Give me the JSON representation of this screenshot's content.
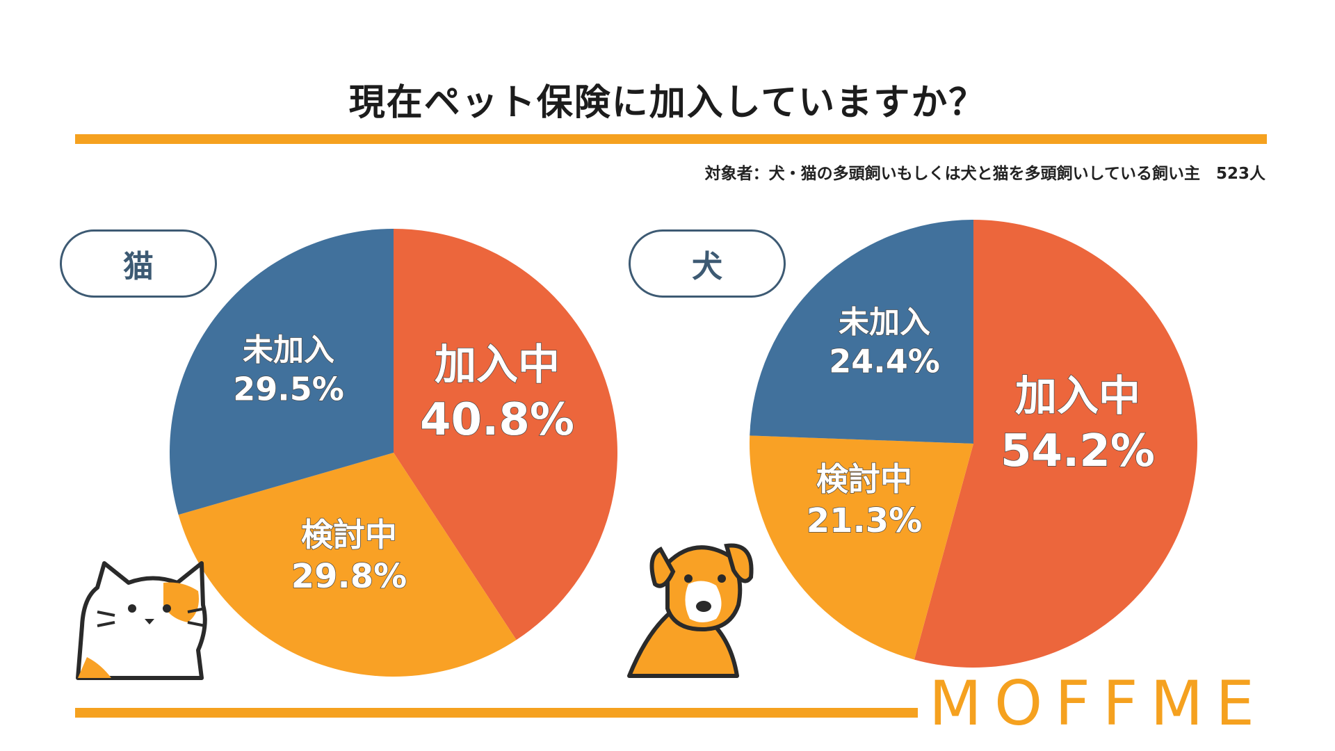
{
  "title": "現在ペット保険に加入していますか？",
  "subtitle": "対象者：犬・猫の多頭飼いもしくは犬と猫を多頭飼いしている飼い主　523人",
  "logo": "MOFFME",
  "colors": {
    "accent": "#f5a11f",
    "joined": "#ec663c",
    "considering": "#f9a125",
    "not_joined": "#41719c",
    "pill_border": "#3d5a73"
  },
  "chart_data": [
    {
      "type": "pie",
      "title": "猫",
      "slices": [
        {
          "label": "加入中",
          "value": 40.8,
          "display": "40.8%",
          "color": "#ec663c"
        },
        {
          "label": "検討中",
          "value": 29.8,
          "display": "29.8%",
          "color": "#f9a125"
        },
        {
          "label": "未加入",
          "value": 29.5,
          "display": "29.5%",
          "color": "#41719c"
        }
      ]
    },
    {
      "type": "pie",
      "title": "犬",
      "slices": [
        {
          "label": "加入中",
          "value": 54.2,
          "display": "54.2%",
          "color": "#ec663c"
        },
        {
          "label": "検討中",
          "value": 21.3,
          "display": "21.3%",
          "color": "#f9a125"
        },
        {
          "label": "未加入",
          "value": 24.4,
          "display": "24.4%",
          "color": "#41719c"
        }
      ]
    }
  ]
}
